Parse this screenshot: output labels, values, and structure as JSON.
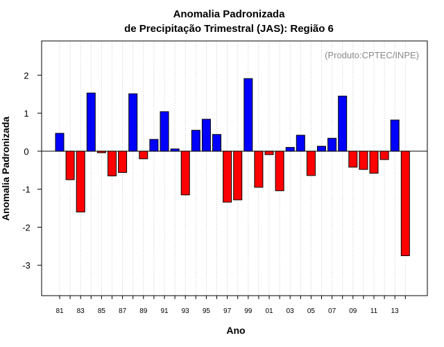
{
  "chart_data": {
    "type": "bar",
    "title": "Anomalia Padronizada",
    "subtitle": "de Precipitação Trimestral (JAS): Região 6",
    "xlabel": "Ano",
    "ylabel": "Anomalia Padronizada",
    "annotation": "(Produto:CPTEC/INPE)",
    "ylim": [
      -3.8,
      2.9
    ],
    "yticks": [
      -3,
      -2,
      -1,
      0,
      1,
      2
    ],
    "categories": [
      "81",
      "82",
      "83",
      "84",
      "85",
      "86",
      "87",
      "88",
      "89",
      "90",
      "91",
      "92",
      "93",
      "94",
      "95",
      "96",
      "97",
      "98",
      "99",
      "00",
      "01",
      "02",
      "03",
      "04",
      "05",
      "06",
      "07",
      "08",
      "09",
      "10",
      "11",
      "12",
      "13",
      "14"
    ],
    "xtick_labels": [
      "81",
      "83",
      "85",
      "87",
      "89",
      "91",
      "93",
      "95",
      "97",
      "99",
      "01",
      "03",
      "05",
      "07",
      "09",
      "11",
      "13"
    ],
    "values": [
      0.47,
      -0.75,
      -1.6,
      1.53,
      -0.04,
      -0.65,
      -0.56,
      1.51,
      -0.2,
      0.31,
      1.04,
      0.06,
      -1.15,
      0.55,
      0.84,
      0.44,
      -1.34,
      -1.28,
      1.91,
      -0.95,
      -0.09,
      -1.04,
      0.1,
      0.42,
      -0.64,
      0.13,
      0.34,
      1.45,
      -0.42,
      -0.48,
      -0.58,
      -0.22,
      0.82,
      -2.75
    ],
    "grid": "vertical dotted",
    "colors": {
      "positive": "#0000ff",
      "negative": "#ff0000",
      "grid": "#c8c8c8",
      "annotation": "#8a8a8a"
    }
  }
}
